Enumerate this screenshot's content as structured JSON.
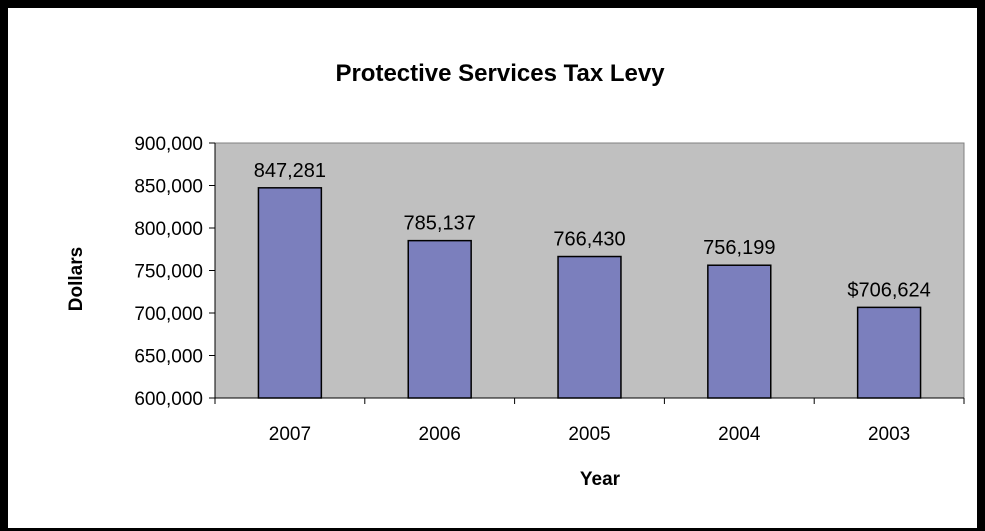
{
  "chart_data": {
    "type": "bar",
    "title": "Protective Services Tax Levy",
    "xlabel": "Year",
    "ylabel": "Dollars",
    "categories": [
      "2007",
      "2006",
      "2005",
      "2004",
      "2003"
    ],
    "values": [
      847281,
      785137,
      766430,
      756199,
      706624
    ],
    "data_labels": [
      "847,281",
      "785,137",
      "766,430",
      "756,199",
      "$706,624"
    ],
    "ylim": [
      600000,
      900000
    ],
    "yticks": [
      600000,
      650000,
      700000,
      750000,
      800000,
      850000,
      900000
    ],
    "ytick_labels": [
      "600,000",
      "650,000",
      "700,000",
      "750,000",
      "800,000",
      "850,000",
      "900,000"
    ],
    "grid": false,
    "legend": "none",
    "colors": {
      "bar_fill": "#7b7fbd",
      "plot_background": "#c0c0c0"
    }
  }
}
